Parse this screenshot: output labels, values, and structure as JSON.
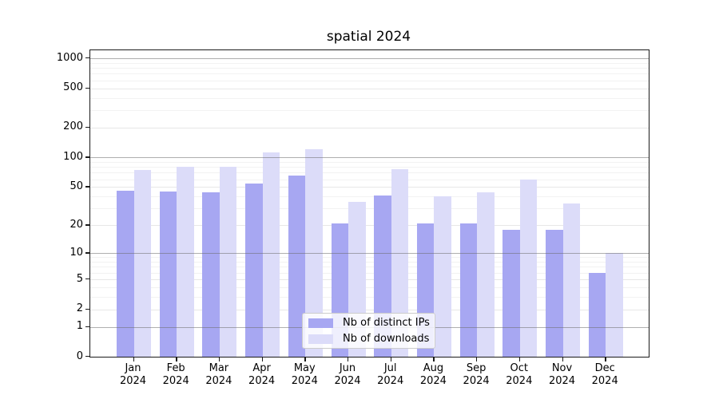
{
  "title": "spatial 2024",
  "chart_data": {
    "type": "bar",
    "title": "spatial 2024",
    "categories": [
      "Jan 2024",
      "Feb 2024",
      "Mar 2024",
      "Apr 2024",
      "May 2024",
      "Jun 2024",
      "Jul 2024",
      "Aug 2024",
      "Sep 2024",
      "Oct 2024",
      "Nov 2024",
      "Dec 2024"
    ],
    "series": [
      {
        "name": "Nb of distinct IPs",
        "color": "#a7a7f2",
        "values": [
          46,
          45,
          44,
          54,
          65,
          21,
          41,
          21,
          21,
          18,
          18,
          6
        ]
      },
      {
        "name": "Nb of downloads",
        "color": "#dcdcf9",
        "values": [
          74,
          80,
          80,
          113,
          121,
          35,
          76,
          40,
          44,
          60,
          34,
          10
        ]
      }
    ],
    "y_scale": "symlog",
    "y_ticks": [
      0,
      1,
      2,
      5,
      10,
      20,
      50,
      100,
      200,
      500,
      1000
    ],
    "y_major_gridlines": [
      1,
      10,
      100,
      1000
    ],
    "ylim": [
      0,
      1200
    ],
    "xlabel": "",
    "ylabel": "",
    "grid": "horizontal",
    "legend_position": "lower-center-inside"
  }
}
